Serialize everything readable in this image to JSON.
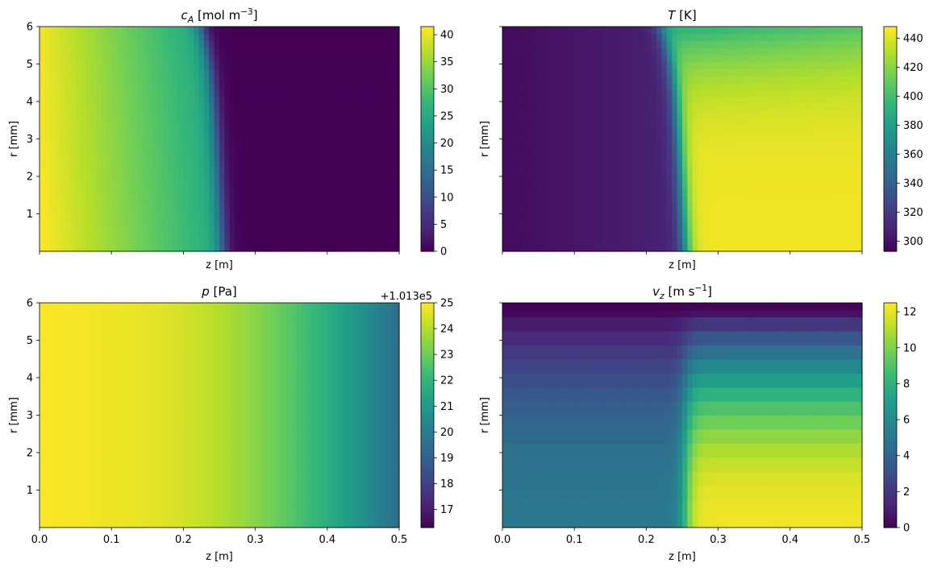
{
  "chart_data": [
    {
      "type": "heatmap",
      "title_main": "c",
      "title_sub": "A",
      "title_unit": " [mol m",
      "title_exp": "−3",
      "title_end": "]",
      "xlabel": "z [m]",
      "ylabel": "r [mm]",
      "xlim": [
        0,
        0.5
      ],
      "ylim": [
        0,
        6
      ],
      "xticks": [
        0.0,
        0.1,
        0.2,
        0.3,
        0.4,
        0.5
      ],
      "xtick_labels_shown": false,
      "yticks": [
        1,
        2,
        3,
        4,
        5,
        6
      ],
      "ytick_labels_shown": true,
      "colorbar": {
        "min": 0,
        "max": 41.5,
        "ticks": [
          0,
          5,
          10,
          15,
          20,
          25,
          30,
          35,
          40
        ],
        "offset": ""
      },
      "field": "concentration"
    },
    {
      "type": "heatmap",
      "title_main": "T",
      "title_sub": "",
      "title_unit": " [K]",
      "title_exp": "",
      "title_end": "",
      "xlabel": "z [m]",
      "ylabel": "r [mm]",
      "xlim": [
        0,
        0.5
      ],
      "ylim": [
        0,
        6
      ],
      "xticks": [
        0.0,
        0.1,
        0.2,
        0.3,
        0.4,
        0.5
      ],
      "xtick_labels_shown": false,
      "yticks": [
        1,
        2,
        3,
        4,
        5,
        6
      ],
      "ytick_labels_shown": false,
      "colorbar": {
        "min": 293,
        "max": 448,
        "ticks": [
          300,
          320,
          340,
          360,
          380,
          400,
          420,
          440
        ],
        "offset": ""
      },
      "field": "temperature"
    },
    {
      "type": "heatmap",
      "title_main": "p",
      "title_sub": "",
      "title_unit": " [Pa]",
      "title_exp": "",
      "title_end": "",
      "xlabel": "z [m]",
      "ylabel": "r [mm]",
      "xlim": [
        0,
        0.5
      ],
      "ylim": [
        0,
        6
      ],
      "xticks": [
        0.0,
        0.1,
        0.2,
        0.3,
        0.4,
        0.5
      ],
      "xtick_labels_shown": true,
      "yticks": [
        1,
        2,
        3,
        4,
        5,
        6
      ],
      "ytick_labels_shown": true,
      "colorbar": {
        "min": 16.3,
        "max": 25,
        "ticks": [
          17,
          18,
          19,
          20,
          21,
          22,
          23,
          24,
          25
        ],
        "offset": "+1.013e5"
      },
      "field": "pressure"
    },
    {
      "type": "heatmap",
      "title_main": "v",
      "title_sub": "z",
      "title_unit": " [m s",
      "title_exp": "−1",
      "title_end": "]",
      "xlabel": "z [m]",
      "ylabel": "r [mm]",
      "xlim": [
        0,
        0.5
      ],
      "ylim": [
        0,
        6
      ],
      "xticks": [
        0.0,
        0.1,
        0.2,
        0.3,
        0.4,
        0.5
      ],
      "xtick_labels_shown": true,
      "yticks": [
        1,
        2,
        3,
        4,
        5,
        6
      ],
      "ytick_labels_shown": false,
      "colorbar": {
        "min": 0,
        "max": 12.5,
        "ticks": [
          0,
          2,
          4,
          6,
          8,
          10,
          12
        ],
        "offset": ""
      },
      "field": "velocity"
    }
  ],
  "colormap": [
    "#440154",
    "#482878",
    "#3e4989",
    "#31688e",
    "#26828e",
    "#1f9e89",
    "#35b779",
    "#6ece58",
    "#b5de2b",
    "#fde725"
  ]
}
